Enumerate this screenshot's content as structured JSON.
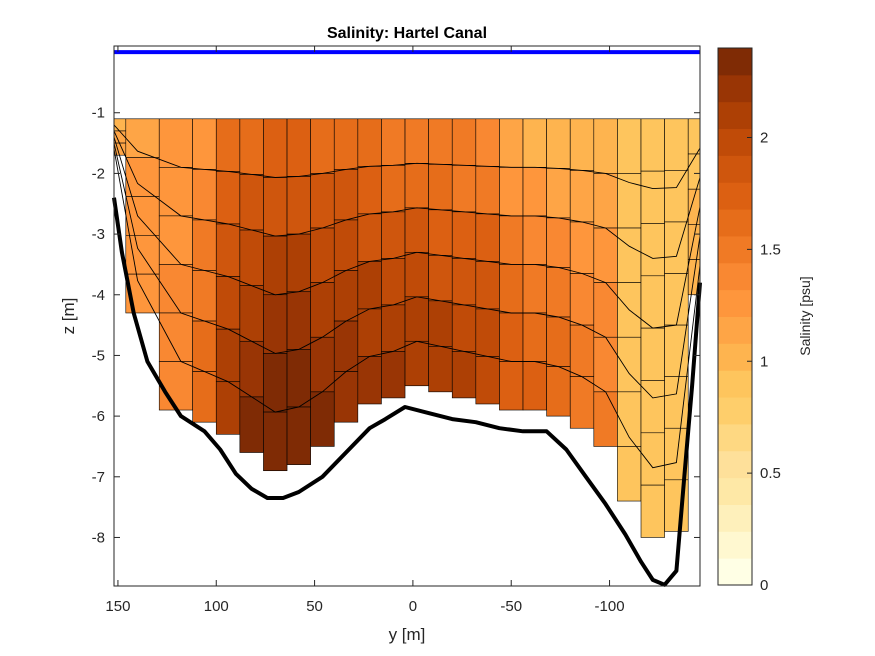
{
  "chart_data": {
    "type": "heatmap",
    "title": "Salinity: Hartel Canal",
    "xlabel": "y [m]",
    "ylabel": "z [m]",
    "xlim": [
      152,
      -146
    ],
    "ylim": [
      -8.8,
      0.1
    ],
    "x_reversed": true,
    "xticks": [
      150,
      100,
      50,
      0,
      -50,
      -100
    ],
    "xtick_labels": [
      "150",
      "100",
      "50",
      "0",
      "-50",
      "-100"
    ],
    "yticks": [
      -1,
      -2,
      -3,
      -4,
      -5,
      -6,
      -7,
      -8
    ],
    "ytick_labels": [
      "-1",
      "-2",
      "-3",
      "-4",
      "-5",
      "-6",
      "-7",
      "-8"
    ],
    "grid": false,
    "water_surface_z": 0.0,
    "water_surface_color": "#0000ff",
    "section_top_z": -1.1,
    "colorbar": {
      "label": "Salinity [psu]",
      "range": [
        0,
        2.4
      ],
      "ticks": [
        0,
        0.5,
        1,
        1.5,
        2
      ],
      "tick_labels": [
        "0",
        "0.5",
        "1",
        "1.5",
        "2"
      ],
      "levels": 20,
      "colormap": "yellow-orange-brown",
      "colors": [
        "#ffffe5",
        "#fff8d0",
        "#fef0bb",
        "#fee8a6",
        "#fee09a",
        "#fed882",
        "#fece6b",
        "#fec55d",
        "#feb44f",
        "#fea546",
        "#fe963c",
        "#f98832",
        "#f07a25",
        "#e66d1a",
        "#dc6012",
        "#cf560d",
        "#c04b08",
        "#ad4005",
        "#993505",
        "#7f2b05"
      ]
    },
    "stations": [
      {
        "y": 152,
        "bottom": -1.7,
        "salinity": [
          1.05,
          1.1,
          1.1
        ]
      },
      {
        "y": 140,
        "bottom": -4.3,
        "salinity": [
          1.15,
          1.2,
          1.25,
          1.25,
          1.3
        ]
      },
      {
        "y": 118,
        "bottom": -5.9,
        "salinity": [
          1.2,
          1.25,
          1.3,
          1.35,
          1.4,
          1.4
        ]
      },
      {
        "y": 106,
        "bottom": -6.1,
        "salinity": [
          1.3,
          1.4,
          1.5,
          1.55,
          1.6,
          1.65
        ]
      },
      {
        "y": 94,
        "bottom": -6.3,
        "salinity": [
          1.6,
          1.7,
          1.9,
          2.0,
          2.1,
          2.15
        ]
      },
      {
        "y": 82,
        "bottom": -6.6,
        "salinity": [
          1.65,
          1.8,
          2.0,
          2.15,
          2.25,
          2.3
        ]
      },
      {
        "y": 70,
        "bottom": -6.9,
        "salinity": [
          1.7,
          1.85,
          2.05,
          2.2,
          2.35,
          2.4
        ]
      },
      {
        "y": 58,
        "bottom": -6.8,
        "salinity": [
          1.7,
          1.85,
          2.05,
          2.2,
          2.3,
          2.35
        ]
      },
      {
        "y": 46,
        "bottom": -6.5,
        "salinity": [
          1.65,
          1.8,
          2.0,
          2.15,
          2.25,
          2.3
        ]
      },
      {
        "y": 34,
        "bottom": -6.1,
        "salinity": [
          1.65,
          1.8,
          1.95,
          2.1,
          2.2,
          2.25
        ]
      },
      {
        "y": 22,
        "bottom": -5.8,
        "salinity": [
          1.6,
          1.75,
          1.9,
          2.05,
          2.15,
          2.2
        ]
      },
      {
        "y": 10,
        "bottom": -5.7,
        "salinity": [
          1.5,
          1.65,
          1.85,
          2.0,
          2.15,
          2.2
        ]
      },
      {
        "y": -2,
        "bottom": -5.5,
        "salinity": [
          1.45,
          1.6,
          1.8,
          1.95,
          2.1,
          2.15
        ]
      },
      {
        "y": -14,
        "bottom": -5.6,
        "salinity": [
          1.45,
          1.6,
          1.75,
          1.9,
          2.05,
          2.1
        ]
      },
      {
        "y": -26,
        "bottom": -5.7,
        "salinity": [
          1.45,
          1.55,
          1.7,
          1.85,
          2.0,
          2.05
        ]
      },
      {
        "y": -38,
        "bottom": -5.8,
        "salinity": [
          1.4,
          1.55,
          1.7,
          1.85,
          1.95,
          2.0
        ]
      },
      {
        "y": -50,
        "bottom": -5.9,
        "salinity": [
          1.1,
          1.25,
          1.45,
          1.6,
          1.7,
          1.75
        ]
      },
      {
        "y": -62,
        "bottom": -5.9,
        "salinity": [
          1.05,
          1.2,
          1.4,
          1.55,
          1.65,
          1.7
        ]
      },
      {
        "y": -74,
        "bottom": -6.0,
        "salinity": [
          1.05,
          1.15,
          1.35,
          1.5,
          1.6,
          1.65
        ]
      },
      {
        "y": -86,
        "bottom": -6.2,
        "salinity": [
          1.05,
          1.15,
          1.3,
          1.4,
          1.5,
          1.55
        ]
      },
      {
        "y": -98,
        "bottom": -6.5,
        "salinity": [
          1.05,
          1.15,
          1.3,
          1.35,
          1.4,
          1.45
        ]
      },
      {
        "y": -110,
        "bottom": -7.4,
        "salinity": [
          0.9,
          0.9,
          0.95,
          0.95,
          0.95,
          0.95,
          0.95
        ]
      },
      {
        "y": -122,
        "bottom": -8.0,
        "salinity": [
          0.85,
          0.85,
          0.85,
          0.85,
          0.85,
          0.9,
          0.9,
          0.9
        ]
      },
      {
        "y": -134,
        "bottom": -7.9,
        "salinity": [
          0.85,
          0.85,
          0.9,
          0.9,
          0.9,
          0.95,
          0.95,
          0.95
        ]
      },
      {
        "y": -146,
        "bottom": -4.0,
        "salinity": [
          0.95,
          0.95,
          1.0,
          1.0,
          1.05
        ]
      }
    ],
    "bed_profile": [
      {
        "y": 152,
        "z": -2.4
      },
      {
        "y": 148,
        "z": -3.3
      },
      {
        "y": 142,
        "z": -4.3
      },
      {
        "y": 135,
        "z": -5.1
      },
      {
        "y": 126,
        "z": -5.6
      },
      {
        "y": 118,
        "z": -6.0
      },
      {
        "y": 106,
        "z": -6.25
      },
      {
        "y": 98,
        "z": -6.55
      },
      {
        "y": 90,
        "z": -6.95
      },
      {
        "y": 82,
        "z": -7.2
      },
      {
        "y": 74,
        "z": -7.35
      },
      {
        "y": 66,
        "z": -7.35
      },
      {
        "y": 58,
        "z": -7.25
      },
      {
        "y": 46,
        "z": -7.0
      },
      {
        "y": 34,
        "z": -6.6
      },
      {
        "y": 22,
        "z": -6.2
      },
      {
        "y": 14,
        "z": -6.05
      },
      {
        "y": 4,
        "z": -5.85
      },
      {
        "y": -8,
        "z": -5.95
      },
      {
        "y": -20,
        "z": -6.05
      },
      {
        "y": -32,
        "z": -6.1
      },
      {
        "y": -44,
        "z": -6.2
      },
      {
        "y": -56,
        "z": -6.25
      },
      {
        "y": -68,
        "z": -6.25
      },
      {
        "y": -78,
        "z": -6.55
      },
      {
        "y": -88,
        "z": -7.0
      },
      {
        "y": -98,
        "z": -7.45
      },
      {
        "y": -108,
        "z": -7.95
      },
      {
        "y": -116,
        "z": -8.4
      },
      {
        "y": -122,
        "z": -8.7
      },
      {
        "y": -128,
        "z": -8.78
      },
      {
        "y": -134,
        "z": -8.55
      },
      {
        "y": -138,
        "z": -7.0
      },
      {
        "y": -142,
        "z": -5.5
      },
      {
        "y": -146,
        "z": -3.8
      }
    ]
  }
}
